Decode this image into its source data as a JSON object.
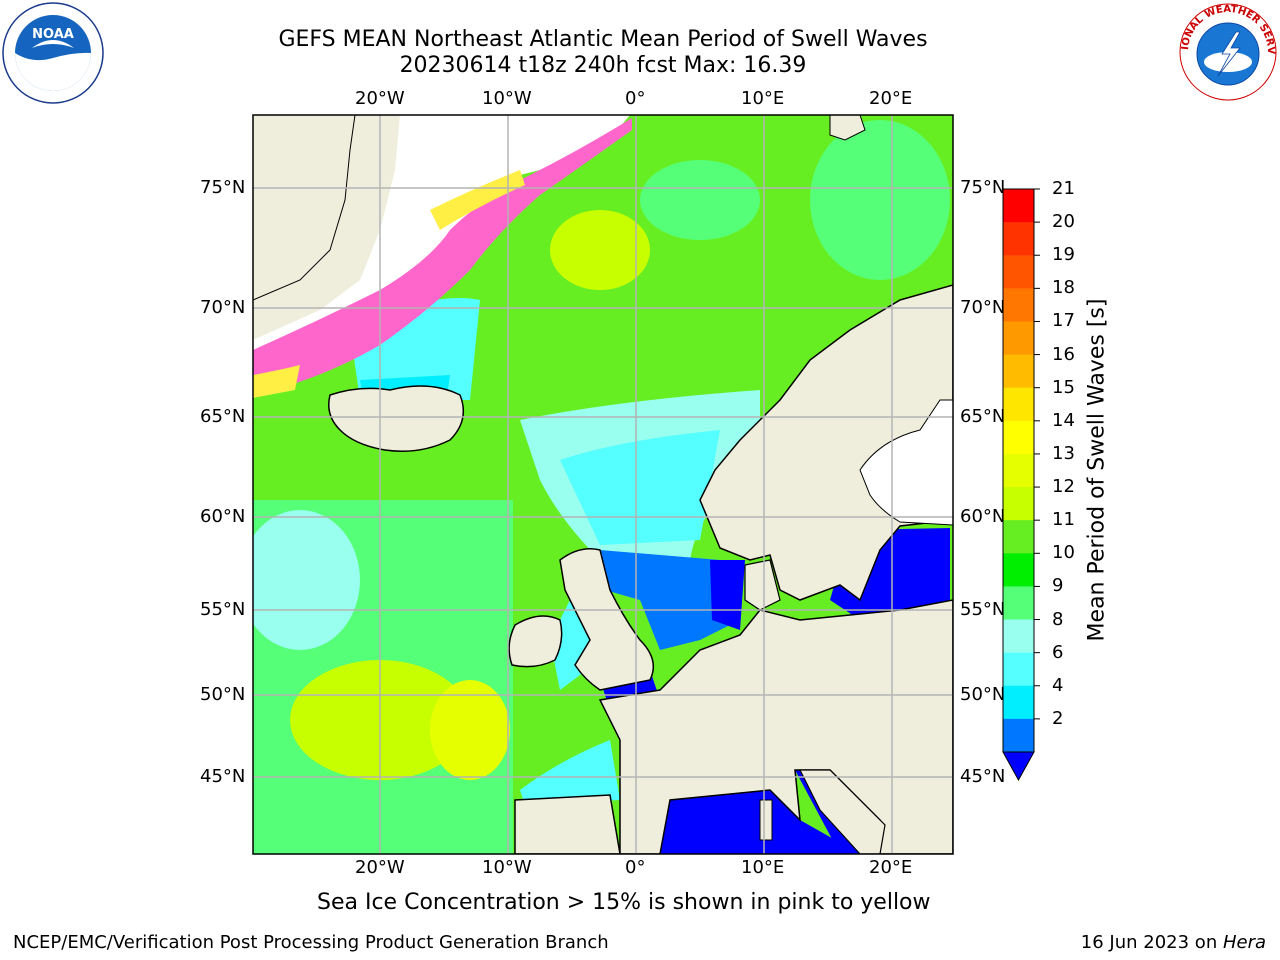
{
  "title": {
    "line1": "GEFS MEAN Northeast Atlantic Mean Period of Swell Waves",
    "line2": "20230614 t18z 240h fcst   Max: 16.39"
  },
  "map": {
    "lon_labels": [
      "20°W",
      "10°W",
      "0°",
      "10°E",
      "20°E"
    ],
    "lat_labels": [
      "75°N",
      "70°N",
      "65°N",
      "60°N",
      "55°N",
      "50°N",
      "45°N"
    ],
    "grid": true,
    "land_color": "#efeedc",
    "no_data_color": "#ffffff"
  },
  "colorbar": {
    "label": "Mean Period of Swell Waves [s]",
    "ticks": [
      "21",
      "20",
      "19",
      "18",
      "17",
      "16",
      "15",
      "14",
      "13",
      "12",
      "11",
      "10",
      "9",
      "8",
      "6",
      "4",
      "2"
    ],
    "colors": [
      "#ff0000",
      "#ff3300",
      "#ff5500",
      "#ff7700",
      "#ff9900",
      "#ffbb00",
      "#ffe600",
      "#ffff00",
      "#e6ff00",
      "#c8ff00",
      "#66ee22",
      "#00ee00",
      "#55ff77",
      "#99ffee",
      "#55ffff",
      "#00eeff",
      "#0077ff"
    ],
    "under_color": "#0000ff",
    "extend": "min"
  },
  "annotation": "Sea Ice Concentration > 15% is shown in pink to yellow",
  "footer": {
    "left": "NCEP/EMC/Verification Post Processing Product Generation Branch",
    "right_date": "16 Jun 2023 on ",
    "right_machine": "Hera"
  },
  "logos": {
    "noaa": "NOAA",
    "nws": "NATIONAL WEATHER SERVICE"
  }
}
